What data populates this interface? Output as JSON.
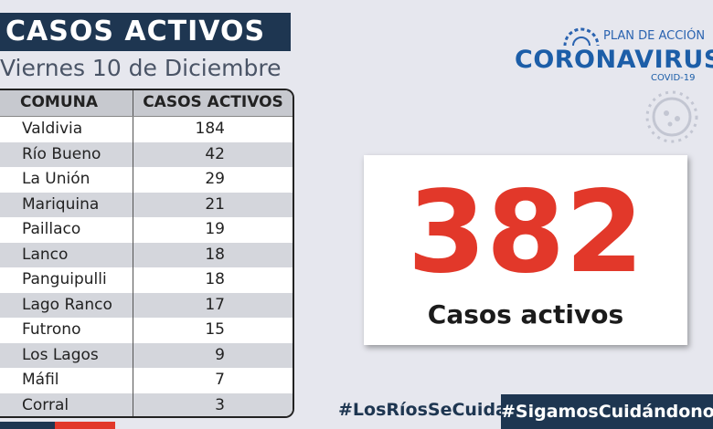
{
  "header": {
    "title": "CASOS ACTIVOS",
    "date": "Viernes 10 de Diciembre"
  },
  "table": {
    "columns": [
      "COMUNA",
      "CASOS ACTIVOS"
    ],
    "rows": [
      [
        "Valdivia",
        184
      ],
      [
        "Río Bueno",
        42
      ],
      [
        "La Unión",
        29
      ],
      [
        "Mariquina",
        21
      ],
      [
        "Paillaco",
        19
      ],
      [
        "Lanco",
        18
      ],
      [
        "Panguipulli",
        18
      ],
      [
        "Lago Ranco",
        17
      ],
      [
        "Futrono",
        15
      ],
      [
        "Los Lagos",
        9
      ],
      [
        "Máfil",
        7
      ],
      [
        "Corral",
        3
      ]
    ]
  },
  "total": {
    "value": 382,
    "label": "Casos activos"
  },
  "logo": {
    "plan": "PLAN DE ACCIÓN",
    "name": "CORONAVIRUS",
    "sub": "COVID-19"
  },
  "hashtags": [
    "#LosRíosSeCuida",
    "#SigamosCuidándonos"
  ]
}
